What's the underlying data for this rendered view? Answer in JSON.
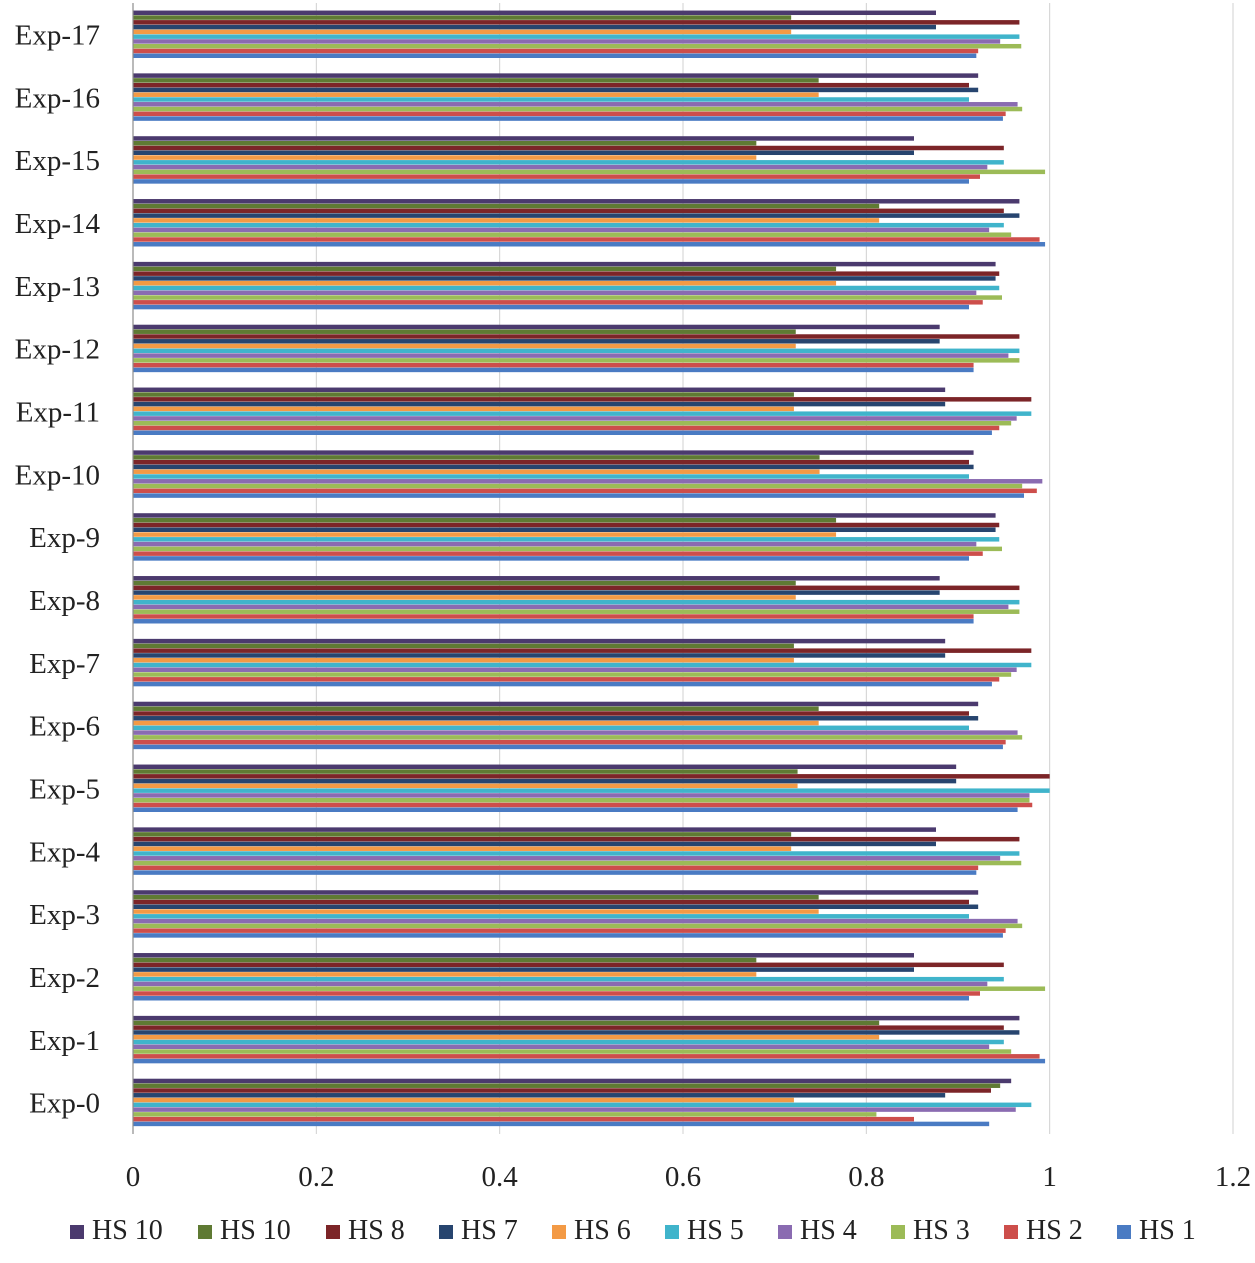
{
  "chart_data": {
    "type": "bar",
    "orientation": "horizontal",
    "title": "",
    "xlabel": "",
    "ylabel": "",
    "xlim": [
      0,
      1.2
    ],
    "x_ticks": [
      "0",
      "0.2",
      "0.4",
      "0.6",
      "0.8",
      "1",
      "1.2"
    ],
    "grid": true,
    "legend_position": "bottom",
    "categories": [
      "Exp-0",
      "Exp-1",
      "Exp-2",
      "Exp-3",
      "Exp-4",
      "Exp-5",
      "Exp-6",
      "Exp-7",
      "Exp-8",
      "Exp-9",
      "Exp-10",
      "Exp-11",
      "Exp-12",
      "Exp-13",
      "Exp-14",
      "Exp-15",
      "Exp-16",
      "Exp-17"
    ],
    "series": [
      {
        "name": "HS 10",
        "color": "#4b3a6e",
        "values": [
          0.958,
          0.967,
          0.852,
          0.922,
          0.876,
          0.898,
          0.922,
          0.886,
          0.88,
          0.941,
          0.917,
          0.886,
          0.88,
          0.941,
          0.967,
          0.852,
          0.922,
          0.876
        ]
      },
      {
        "name": "HS 10",
        "color": "#5f7a33",
        "values": [
          0.946,
          0.814,
          0.68,
          0.748,
          0.718,
          0.725,
          0.748,
          0.721,
          0.723,
          0.767,
          0.749,
          0.721,
          0.723,
          0.767,
          0.814,
          0.68,
          0.748,
          0.718
        ]
      },
      {
        "name": "HS 8",
        "color": "#7c2528",
        "values": [
          0.936,
          0.95,
          0.95,
          0.912,
          0.967,
          1.0,
          0.912,
          0.98,
          0.967,
          0.945,
          0.912,
          0.98,
          0.967,
          0.945,
          0.95,
          0.95,
          0.912,
          0.967
        ]
      },
      {
        "name": "HS 7",
        "color": "#27456f",
        "values": [
          0.886,
          0.967,
          0.852,
          0.922,
          0.876,
          0.898,
          0.922,
          0.886,
          0.88,
          0.941,
          0.917,
          0.886,
          0.88,
          0.941,
          0.967,
          0.852,
          0.922,
          0.876
        ]
      },
      {
        "name": "HS 6",
        "color": "#f39a45",
        "values": [
          0.721,
          0.814,
          0.68,
          0.748,
          0.718,
          0.725,
          0.748,
          0.721,
          0.723,
          0.767,
          0.749,
          0.721,
          0.723,
          0.767,
          0.814,
          0.68,
          0.748,
          0.718
        ]
      },
      {
        "name": "HS 5",
        "color": "#40b4cb",
        "values": [
          0.98,
          0.95,
          0.95,
          0.912,
          0.967,
          1.0,
          0.912,
          0.98,
          0.967,
          0.945,
          0.912,
          0.98,
          0.967,
          0.945,
          0.95,
          0.95,
          0.912,
          0.967
        ]
      },
      {
        "name": "HS 4",
        "color": "#8a6bb1",
        "values": [
          0.963,
          0.934,
          0.932,
          0.965,
          0.946,
          0.978,
          0.965,
          0.964,
          0.955,
          0.92,
          0.992,
          0.964,
          0.955,
          0.92,
          0.934,
          0.932,
          0.965,
          0.946
        ]
      },
      {
        "name": "HS 3",
        "color": "#9cbb57",
        "values": [
          0.811,
          0.958,
          0.995,
          0.97,
          0.969,
          0.978,
          0.97,
          0.958,
          0.967,
          0.948,
          0.97,
          0.958,
          0.967,
          0.948,
          0.958,
          0.995,
          0.97,
          0.969
        ]
      },
      {
        "name": "HS 2",
        "color": "#cd4e4b",
        "values": [
          0.852,
          0.989,
          0.924,
          0.952,
          0.922,
          0.981,
          0.952,
          0.945,
          0.917,
          0.927,
          0.986,
          0.945,
          0.917,
          0.927,
          0.989,
          0.924,
          0.952,
          0.922
        ]
      },
      {
        "name": "HS 1",
        "color": "#4a7bc3",
        "values": [
          0.934,
          0.995,
          0.912,
          0.949,
          0.92,
          0.965,
          0.949,
          0.937,
          0.917,
          0.912,
          0.972,
          0.937,
          0.917,
          0.912,
          0.995,
          0.912,
          0.949,
          0.92
        ]
      }
    ]
  }
}
